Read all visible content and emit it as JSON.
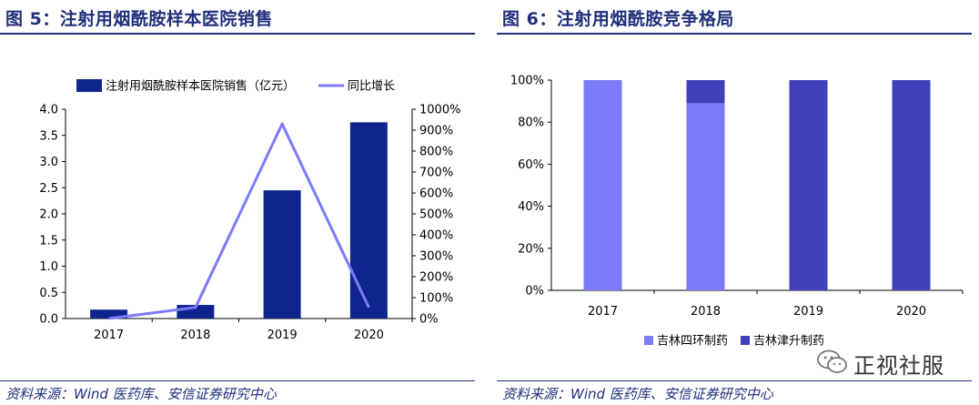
{
  "left": {
    "title": "图 5：注射用烟酰胺样本医院销售",
    "source": "资料来源：Wind 医药库、安信证券研究中心"
  },
  "right": {
    "title": "图 6：注射用烟酰胺竞争格局",
    "source": "资料来源：Wind 医药库、安信证券研究中心"
  },
  "watermark": {
    "text": "正视社服",
    "icon": "wechat-icon"
  },
  "chart_data": [
    {
      "type": "bar",
      "title": "",
      "categories": [
        "2017",
        "2018",
        "2019",
        "2020"
      ],
      "series": [
        {
          "name": "注射用烟酰胺样本医院销售（亿元）",
          "type": "bar",
          "axis": "left",
          "color": "#0f248c",
          "values": [
            0.17,
            0.26,
            2.45,
            3.75
          ]
        },
        {
          "name": "同比增长",
          "type": "line",
          "axis": "right",
          "color": "#7b7bf7",
          "values": [
            0,
            53,
            930,
            53
          ]
        }
      ],
      "ylim": [
        0,
        4.0
      ],
      "yticks": [
        "0.0",
        "0.5",
        "1.0",
        "1.5",
        "2.0",
        "2.5",
        "3.0",
        "3.5",
        "4.0"
      ],
      "y2lim": [
        0,
        1000
      ],
      "y2ticks": [
        "0%",
        "100%",
        "200%",
        "300%",
        "400%",
        "500%",
        "600%",
        "700%",
        "800%",
        "900%",
        "1000%"
      ],
      "legend": "top",
      "grid": false
    },
    {
      "type": "bar",
      "stacked": true,
      "title": "",
      "categories": [
        "2017",
        "2018",
        "2019",
        "2020"
      ],
      "series": [
        {
          "name": "吉林四环制药",
          "color": "#7b7bf7",
          "values": [
            100,
            89,
            0,
            0
          ]
        },
        {
          "name": "吉林津升制药",
          "color": "#4040b8",
          "values": [
            0,
            11,
            100,
            100
          ]
        }
      ],
      "ylim": [
        0,
        100
      ],
      "yticks": [
        "0%",
        "20%",
        "40%",
        "60%",
        "80%",
        "100%"
      ],
      "legend": "bottom",
      "grid": false
    }
  ]
}
